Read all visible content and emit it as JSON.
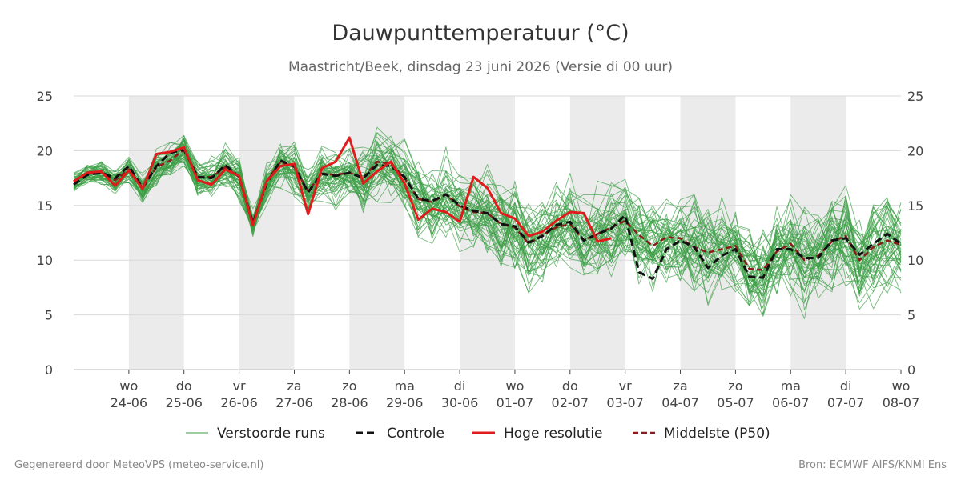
{
  "chart_data": {
    "type": "line",
    "title": "Dauwpunttemperatuur (°C)",
    "subtitle": "Maastricht/Beek, dinsdag 23 juni 2026 (Versie di 00 uur)",
    "ylim": [
      0,
      25
    ],
    "yticks": [
      0,
      5,
      10,
      15,
      20,
      25
    ],
    "grid": true,
    "legend_position": "bottom",
    "x_range": [
      "2026-06-23 00:00",
      "2026-07-08 00:00"
    ],
    "x_step_hours": 6,
    "x_ticks": [
      {
        "day": "wo",
        "date": "24-06"
      },
      {
        "day": "do",
        "date": "25-06"
      },
      {
        "day": "vr",
        "date": "26-06"
      },
      {
        "day": "za",
        "date": "27-06"
      },
      {
        "day": "zo",
        "date": "28-06"
      },
      {
        "day": "ma",
        "date": "29-06"
      },
      {
        "day": "di",
        "date": "30-06"
      },
      {
        "day": "wo",
        "date": "01-07"
      },
      {
        "day": "do",
        "date": "02-07"
      },
      {
        "day": "vr",
        "date": "03-07"
      },
      {
        "day": "za",
        "date": "04-07"
      },
      {
        "day": "zo",
        "date": "05-07"
      },
      {
        "day": "ma",
        "date": "06-07"
      },
      {
        "day": "di",
        "date": "07-07"
      },
      {
        "day": "wo",
        "date": "08-07"
      }
    ],
    "shaded_day_bands": [
      1,
      3,
      5,
      7,
      9,
      11,
      13
    ],
    "series": [
      {
        "name": "Hoge resolutie",
        "style": "solid-red",
        "values": [
          17.2,
          18.0,
          18.1,
          16.8,
          18.2,
          16.5,
          19.7,
          19.9,
          20.3,
          17.3,
          16.9,
          18.3,
          17.7,
          13.2,
          17.2,
          18.6,
          18.8,
          14.2,
          18.4,
          19.0,
          21.2,
          17.0,
          18.1,
          19.0,
          17.0,
          13.7,
          14.7,
          14.4,
          13.5,
          17.6,
          16.6,
          14.3,
          13.8,
          12.2,
          12.6,
          13.6,
          14.4,
          14.3,
          11.7,
          12.0
        ]
      },
      {
        "name": "Controle",
        "style": "dashed-black",
        "values": [
          16.9,
          17.8,
          18.0,
          17.5,
          18.6,
          16.6,
          18.6,
          19.8,
          20.1,
          17.6,
          17.5,
          18.7,
          17.6,
          13.4,
          17.0,
          19.1,
          18.6,
          16.2,
          17.9,
          17.7,
          18.0,
          17.5,
          18.7,
          18.6,
          17.6,
          15.6,
          15.4,
          16.0,
          15.0,
          14.5,
          14.3,
          13.3,
          13.1,
          11.6,
          12.2,
          13.2,
          13.5,
          11.8,
          12.4,
          12.9,
          14.1,
          8.9,
          8.3,
          11.0,
          11.8,
          11.2,
          9.3,
          10.4,
          11.0,
          8.5,
          8.4,
          11.0,
          11.0,
          10.2,
          10.2,
          11.8,
          12.0,
          10.5,
          11.5,
          12.4,
          11.5
        ]
      },
      {
        "name": "Middelste (P50)",
        "style": "dashed-darkred",
        "values": [
          17.1,
          17.9,
          18.0,
          17.3,
          18.3,
          16.6,
          18.5,
          19.1,
          20.1,
          17.6,
          17.6,
          18.5,
          17.6,
          13.3,
          17.2,
          19.0,
          18.5,
          16.3,
          17.9,
          17.8,
          18.0,
          17.5,
          19.0,
          18.8,
          17.5,
          15.6,
          15.3,
          16.0,
          14.9,
          14.4,
          14.3,
          13.3,
          13.0,
          11.5,
          12.3,
          13.0,
          13.3,
          11.8,
          12.4,
          13.0,
          13.6,
          12.3,
          11.3,
          12.1,
          12.0,
          11.2,
          10.7,
          11.0,
          11.3,
          9.2,
          9.1,
          10.8,
          11.5,
          10.0,
          10.4,
          11.7,
          12.2,
          10.0,
          11.2,
          11.8,
          11.4
        ]
      }
    ],
    "ensemble": {
      "name": "Verstoorde runs",
      "style": "thin-green",
      "members": 50,
      "p50_values": [
        17.1,
        17.9,
        18.0,
        17.3,
        18.3,
        16.6,
        18.5,
        19.1,
        20.1,
        17.6,
        17.6,
        18.5,
        17.6,
        13.3,
        17.2,
        19.0,
        18.5,
        16.3,
        17.9,
        17.8,
        18.0,
        17.5,
        19.0,
        18.8,
        17.5,
        15.6,
        15.3,
        16.0,
        14.9,
        14.4,
        14.3,
        13.3,
        13.0,
        11.5,
        12.3,
        13.0,
        13.3,
        11.8,
        12.4,
        13.0,
        13.6,
        12.3,
        11.3,
        12.1,
        12.0,
        11.2,
        10.7,
        11.0,
        11.3,
        9.2,
        9.1,
        10.8,
        11.5,
        10.0,
        10.4,
        11.7,
        12.2,
        10.0,
        11.2,
        11.8,
        11.4
      ],
      "spread": [
        0.8,
        0.9,
        1.0,
        1.0,
        1.1,
        1.1,
        1.3,
        1.4,
        1.5,
        1.6,
        1.6,
        1.8,
        1.8,
        1.0,
        1.8,
        2.0,
        2.1,
        1.9,
        2.0,
        2.2,
        2.3,
        2.5,
        2.6,
        2.8,
        2.8,
        3.0,
        3.1,
        3.2,
        3.2,
        3.3,
        3.4,
        3.4,
        3.4,
        3.5,
        3.5,
        3.5,
        3.6,
        3.6,
        3.6,
        3.6,
        3.6,
        3.6,
        3.7,
        3.7,
        3.7,
        3.7,
        3.7,
        3.8,
        3.8,
        3.8,
        3.8,
        3.8,
        3.8,
        3.9,
        3.9,
        3.9,
        3.9,
        3.9,
        3.9,
        4.0,
        4.0
      ]
    },
    "legend": [
      {
        "label": "Verstoorde runs",
        "style": "thin-green"
      },
      {
        "label": "Controle",
        "style": "dashed-black"
      },
      {
        "label": "Hoge resolutie",
        "style": "solid-red"
      },
      {
        "label": "Middelste (P50)",
        "style": "dashed-darkred"
      }
    ],
    "colors": {
      "ensemble": "#3a9e45",
      "control": "#111111",
      "hres": "#e01b1b",
      "p50": "#8b1a1a",
      "band": "#ebebeb",
      "grid": "#d9d9d9"
    }
  },
  "footer": {
    "left": "Gegenereerd door MeteoVPS (meteo-service.nl)",
    "right": "Bron: ECMWF AIFS/KNMI Ens"
  }
}
